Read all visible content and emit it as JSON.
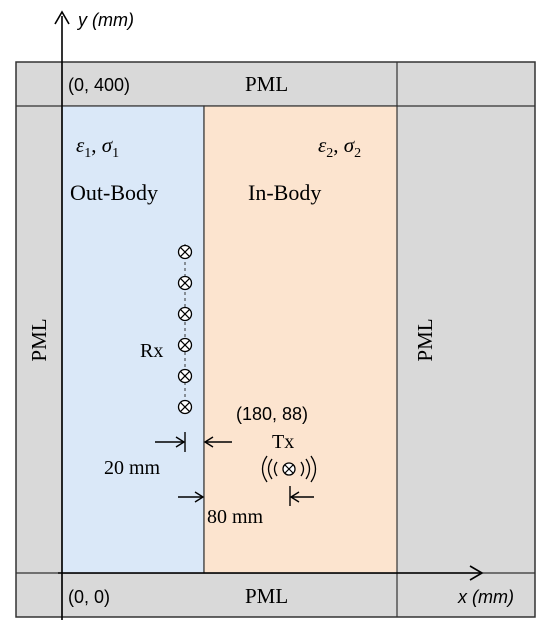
{
  "axes": {
    "y_label": "y (mm)",
    "x_label": "x (mm)"
  },
  "pml": {
    "top": "PML",
    "bottom": "PML",
    "left": "PML",
    "right": "PML"
  },
  "coords": {
    "top_left": "(0, 400)",
    "origin": "(0, 0)",
    "tx": "(180, 88)"
  },
  "regions": {
    "out_body": {
      "label": "Out-Body",
      "eps": "ε",
      "eps_sub": "1",
      "sep": ", ",
      "sigma": "σ",
      "sigma_sub": "1"
    },
    "in_body": {
      "label": "In-Body",
      "eps": "ε",
      "eps_sub": "2",
      "sep": ", ",
      "sigma": "σ",
      "sigma_sub": "2"
    }
  },
  "antennas": {
    "rx_label": "Rx",
    "tx_label": "Tx",
    "rx_count": 6
  },
  "dimensions": {
    "rx_offset": "20 mm",
    "tx_offset": "80 mm"
  },
  "colors": {
    "pml_fill": "#d9d9d9",
    "out_body_fill": "#dae8f8",
    "in_body_fill": "#fce4cf",
    "stroke": "#222222"
  }
}
